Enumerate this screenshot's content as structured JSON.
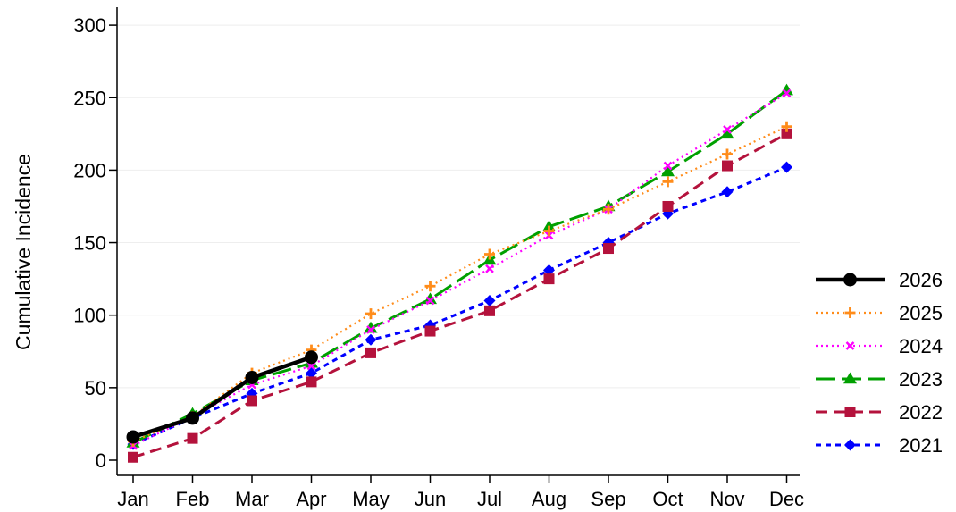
{
  "chart_data": {
    "type": "line",
    "title": "",
    "xlabel": "",
    "ylabel": "Cumulative Incidence",
    "categories": [
      "Jan",
      "Feb",
      "Mar",
      "Apr",
      "May",
      "Jun",
      "Jul",
      "Aug",
      "Sep",
      "Oct",
      "Nov",
      "Dec"
    ],
    "ylim": [
      0,
      300
    ],
    "yticks": [
      "0",
      "50",
      "100",
      "150",
      "200",
      "250",
      "300"
    ],
    "grid": true,
    "legend_position": "right",
    "series": [
      {
        "name": "2026",
        "color": "#000000",
        "marker": "circle",
        "dash": "solid",
        "values": [
          16,
          29,
          57,
          71,
          null,
          null,
          null,
          null,
          null,
          null,
          null,
          null
        ]
      },
      {
        "name": "2025",
        "color": "#ff8c1a",
        "marker": "plus",
        "dash": "dotted",
        "values": [
          13,
          30,
          60,
          76,
          101,
          120,
          142,
          158,
          173,
          192,
          211,
          230
        ]
      },
      {
        "name": "2024",
        "color": "#ff00ff",
        "marker": "x",
        "dash": "dotted",
        "values": [
          10,
          30,
          52,
          65,
          90,
          110,
          132,
          155,
          173,
          203,
          228,
          253
        ]
      },
      {
        "name": "2023",
        "color": "#00a000",
        "marker": "triangle",
        "dash": "longdash",
        "values": [
          12,
          32,
          55,
          67,
          91,
          111,
          138,
          161,
          175,
          199,
          225,
          255
        ]
      },
      {
        "name": "2022",
        "color": "#b4123c",
        "marker": "square",
        "dash": "dash",
        "values": [
          2,
          15,
          41,
          54,
          74,
          89,
          103,
          125,
          146,
          175,
          203,
          225
        ]
      },
      {
        "name": "2021",
        "color": "#0000ff",
        "marker": "diamond",
        "dash": "shortdash",
        "values": [
          11,
          29,
          46,
          60,
          83,
          93,
          110,
          131,
          150,
          170,
          185,
          202
        ]
      }
    ]
  }
}
